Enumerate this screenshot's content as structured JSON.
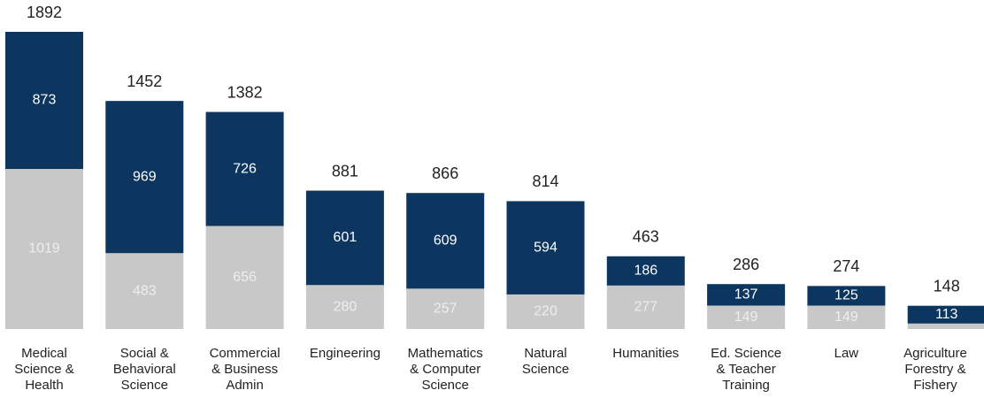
{
  "chart_data": {
    "type": "stacked-bar",
    "categories": [
      "Medical\nScience &\nHealth",
      "Social &\nBehavioral\nScience",
      "Commercial\n& Business\nAdmin",
      "Engineering",
      "Mathematics\n& Computer\nScience",
      "Natural\nScience",
      "Humanities",
      "Ed. Science\n& Teacher\nTraining",
      "Law",
      "Agriculture\nForestry &\nFishery"
    ],
    "series": [
      {
        "color": "#c8c8c8",
        "values": [
          1019,
          483,
          656,
          280,
          257,
          220,
          277,
          149,
          149,
          35
        ]
      },
      {
        "color": "#0c3660",
        "values": [
          873,
          969,
          726,
          601,
          609,
          594,
          186,
          137,
          125,
          113
        ]
      }
    ],
    "totals": [
      1892,
      1452,
      1382,
      881,
      866,
      814,
      463,
      286,
      274,
      148
    ]
  }
}
